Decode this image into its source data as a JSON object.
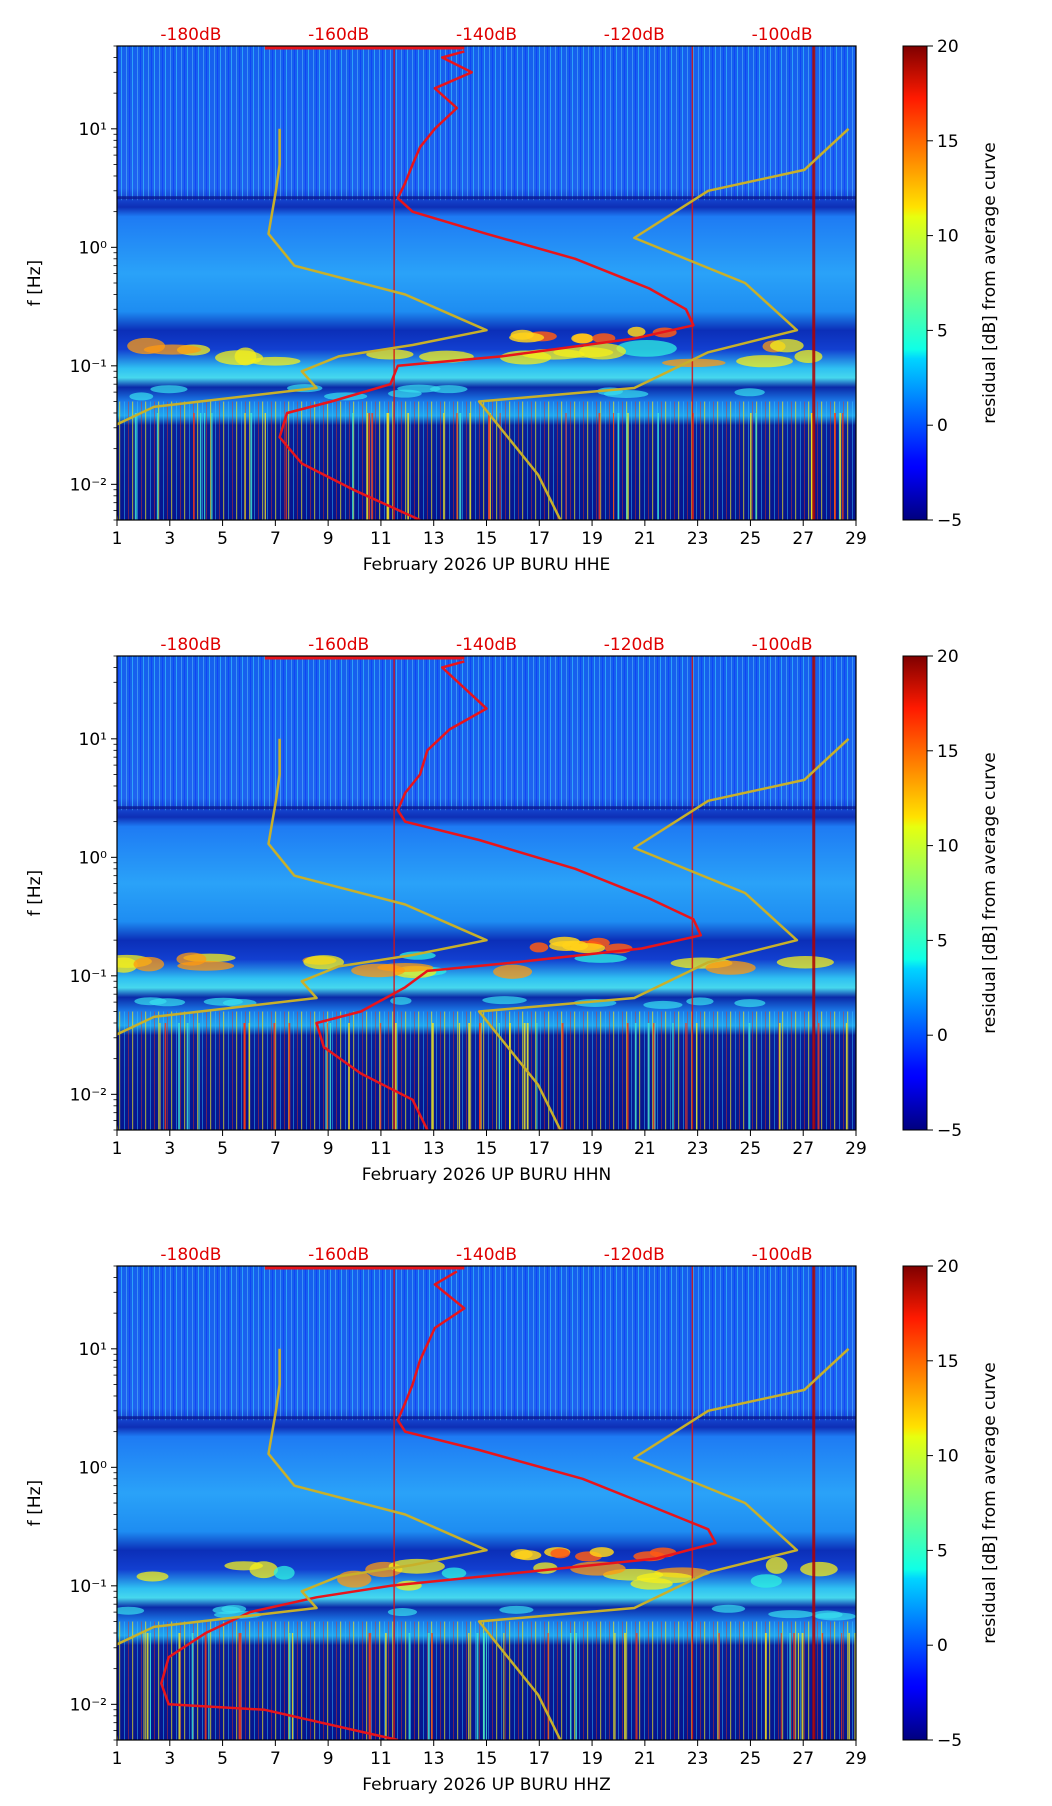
{
  "chart_data": [
    {
      "type": "heatmap",
      "title": "",
      "xlabel": "February 2026 UP BURU  HHE",
      "ylabel": "f [Hz]",
      "x_ticks": [
        "1",
        "3",
        "5",
        "7",
        "9",
        "11",
        "13",
        "15",
        "17",
        "19",
        "21",
        "23",
        "25",
        "27",
        "29"
      ],
      "x_range": [
        1,
        29
      ],
      "y_ticks": [
        "10⁻²",
        "10⁻¹",
        "10⁰",
        "10¹"
      ],
      "y_range_hz": [
        0.005,
        50
      ],
      "top_ticks": [
        "-180dB",
        "-160dB",
        "-140dB",
        "-120dB",
        "-100dB"
      ],
      "top_range_db": [
        -190,
        -90
      ],
      "colorbar": {
        "label": "residual [dB] from average curve",
        "ticks": [
          "20",
          "15",
          "10",
          "5",
          "0",
          "−5"
        ],
        "range": [
          -5,
          20
        ]
      },
      "series": [
        {
          "name": "median PSD (red)",
          "color": "#e8141b",
          "points": [
            [
              -143,
              45
            ],
            [
              -146,
              40
            ],
            [
              -142,
              30
            ],
            [
              -147,
              22
            ],
            [
              -144,
              15
            ],
            [
              -147,
              10
            ],
            [
              -149,
              7
            ],
            [
              -150,
              5
            ],
            [
              -151,
              3.5
            ],
            [
              -152,
              2.6
            ],
            [
              -150,
              2
            ],
            [
              -140,
              1.3
            ],
            [
              -128,
              0.8
            ],
            [
              -118,
              0.45
            ],
            [
              -113,
              0.3
            ],
            [
              -112,
              0.22
            ],
            [
              -120,
              0.17
            ],
            [
              -138,
              0.12
            ],
            [
              -152,
              0.1
            ],
            [
              -153,
              0.07
            ],
            [
              -161,
              0.05
            ],
            [
              -167,
              0.04
            ],
            [
              -168,
              0.025
            ],
            [
              -165,
              0.015
            ],
            [
              -158,
              0.009
            ],
            [
              -149,
              0.005
            ]
          ]
        },
        {
          "name": "Peterson NHNM (yellow)",
          "color": "#c8b02a",
          "points": [
            [
              -91,
              10
            ],
            [
              -97,
              4.5
            ],
            [
              -110,
              3
            ],
            [
              -120,
              1.2
            ],
            [
              -105,
              0.5
            ],
            [
              -98,
              0.2
            ],
            [
              -110,
              0.13
            ],
            [
              -120,
              0.065
            ],
            [
              -141,
              0.05
            ],
            [
              -133,
              0.012
            ],
            [
              -130,
              0.005
            ]
          ]
        },
        {
          "name": "Peterson NLNM (yellow)",
          "color": "#c8b02a",
          "points": [
            [
              -168,
              10
            ],
            [
              -168,
              5
            ],
            [
              -168.5,
              3
            ],
            [
              -169.5,
              1.3
            ],
            [
              -166,
              0.7
            ],
            [
              -151,
              0.4
            ],
            [
              -140,
              0.2
            ],
            [
              -150,
              0.15
            ],
            [
              -160,
              0.12
            ],
            [
              -165,
              0.09
            ],
            [
              -163,
              0.065
            ],
            [
              -185,
              0.045
            ],
            [
              -191,
              0.03
            ],
            [
              -192,
              0.02
            ],
            [
              -191,
              0.013
            ],
            [
              -190,
              0.005
            ]
          ]
        }
      ]
    },
    {
      "type": "heatmap",
      "title": "",
      "xlabel": "February 2026 UP BURU  HHN",
      "ylabel": "f [Hz]",
      "x_ticks": [
        "1",
        "3",
        "5",
        "7",
        "9",
        "11",
        "13",
        "15",
        "17",
        "19",
        "21",
        "23",
        "25",
        "27",
        "29"
      ],
      "x_range": [
        1,
        29
      ],
      "y_ticks": [
        "10⁻²",
        "10⁻¹",
        "10⁰",
        "10¹"
      ],
      "y_range_hz": [
        0.005,
        50
      ],
      "top_ticks": [
        "-180dB",
        "-160dB",
        "-140dB",
        "-120dB",
        "-100dB"
      ],
      "top_range_db": [
        -190,
        -90
      ],
      "colorbar": {
        "label": "residual [dB] from average curve",
        "ticks": [
          "20",
          "15",
          "10",
          "5",
          "0",
          "−5"
        ],
        "range": [
          -5,
          20
        ]
      },
      "series": [
        {
          "name": "median PSD (red)",
          "color": "#e8141b",
          "points": [
            [
              -143,
              45
            ],
            [
              -146,
              40
            ],
            [
              -140,
              18
            ],
            [
              -145,
              12
            ],
            [
              -148,
              8
            ],
            [
              -149,
              5
            ],
            [
              -151,
              3.5
            ],
            [
              -152,
              2.5
            ],
            [
              -151,
              2
            ],
            [
              -141,
              1.4
            ],
            [
              -128,
              0.8
            ],
            [
              -118,
              0.45
            ],
            [
              -112,
              0.3
            ],
            [
              -111,
              0.22
            ],
            [
              -119,
              0.17
            ],
            [
              -136,
              0.13
            ],
            [
              -148,
              0.11
            ],
            [
              -151,
              0.08
            ],
            [
              -157,
              0.05
            ],
            [
              -163,
              0.04
            ],
            [
              -162,
              0.025
            ],
            [
              -157,
              0.015
            ],
            [
              -150,
              0.009
            ],
            [
              -148,
              0.005
            ]
          ]
        },
        {
          "name": "Peterson NHNM (yellow)",
          "color": "#c8b02a",
          "points": [
            [
              -91,
              10
            ],
            [
              -97,
              4.5
            ],
            [
              -110,
              3
            ],
            [
              -120,
              1.2
            ],
            [
              -105,
              0.5
            ],
            [
              -98,
              0.2
            ],
            [
              -110,
              0.13
            ],
            [
              -120,
              0.065
            ],
            [
              -141,
              0.05
            ],
            [
              -133,
              0.012
            ],
            [
              -130,
              0.005
            ]
          ]
        },
        {
          "name": "Peterson NLNM (yellow)",
          "color": "#c8b02a",
          "points": [
            [
              -168,
              10
            ],
            [
              -168,
              5
            ],
            [
              -168.5,
              3
            ],
            [
              -169.5,
              1.3
            ],
            [
              -166,
              0.7
            ],
            [
              -151,
              0.4
            ],
            [
              -140,
              0.2
            ],
            [
              -150,
              0.15
            ],
            [
              -160,
              0.12
            ],
            [
              -165,
              0.09
            ],
            [
              -163,
              0.065
            ],
            [
              -185,
              0.045
            ],
            [
              -191,
              0.03
            ],
            [
              -192,
              0.02
            ],
            [
              -191,
              0.013
            ],
            [
              -190,
              0.005
            ]
          ]
        }
      ]
    },
    {
      "type": "heatmap",
      "title": "",
      "xlabel": "February 2026 UP BURU  HHZ",
      "ylabel": "f [Hz]",
      "x_ticks": [
        "1",
        "3",
        "5",
        "7",
        "9",
        "11",
        "13",
        "15",
        "17",
        "19",
        "21",
        "23",
        "25",
        "27",
        "29"
      ],
      "x_range": [
        1,
        29
      ],
      "y_ticks": [
        "10⁻²",
        "10⁻¹",
        "10⁰",
        "10¹"
      ],
      "y_range_hz": [
        0.005,
        50
      ],
      "top_ticks": [
        "-180dB",
        "-160dB",
        "-140dB",
        "-120dB",
        "-100dB"
      ],
      "top_range_db": [
        -190,
        -90
      ],
      "colorbar": {
        "label": "residual [dB] from average curve",
        "ticks": [
          "20",
          "15",
          "10",
          "5",
          "0",
          "−5"
        ],
        "range": [
          -5,
          20
        ]
      },
      "series": [
        {
          "name": "median PSD (red)",
          "color": "#e8141b",
          "points": [
            [
              -144,
              45
            ],
            [
              -147,
              35
            ],
            [
              -143,
              22
            ],
            [
              -147,
              15
            ],
            [
              -149,
              8
            ],
            [
              -150,
              5
            ],
            [
              -151,
              3.5
            ],
            [
              -152,
              2.5
            ],
            [
              -151,
              2
            ],
            [
              -141,
              1.4
            ],
            [
              -127,
              0.8
            ],
            [
              -117,
              0.45
            ],
            [
              -110,
              0.3
            ],
            [
              -109,
              0.23
            ],
            [
              -117,
              0.17
            ],
            [
              -135,
              0.13
            ],
            [
              -153,
              0.1
            ],
            [
              -163,
              0.08
            ],
            [
              -172,
              0.06
            ],
            [
              -178,
              0.04
            ],
            [
              -183,
              0.025
            ],
            [
              -184,
              0.015
            ],
            [
              -183,
              0.01
            ],
            [
              -170,
              0.009
            ],
            [
              -152,
              0.005
            ]
          ]
        },
        {
          "name": "Peterson NHNM (yellow)",
          "color": "#c8b02a",
          "points": [
            [
              -91,
              10
            ],
            [
              -97,
              4.5
            ],
            [
              -110,
              3
            ],
            [
              -120,
              1.2
            ],
            [
              -105,
              0.5
            ],
            [
              -98,
              0.2
            ],
            [
              -110,
              0.13
            ],
            [
              -120,
              0.065
            ],
            [
              -141,
              0.05
            ],
            [
              -133,
              0.012
            ],
            [
              -130,
              0.005
            ]
          ]
        },
        {
          "name": "Peterson NLNM (yellow)",
          "color": "#c8b02a",
          "points": [
            [
              -168,
              10
            ],
            [
              -168,
              5
            ],
            [
              -168.5,
              3
            ],
            [
              -169.5,
              1.3
            ],
            [
              -166,
              0.7
            ],
            [
              -151,
              0.4
            ],
            [
              -140,
              0.2
            ],
            [
              -150,
              0.15
            ],
            [
              -160,
              0.12
            ],
            [
              -165,
              0.09
            ],
            [
              -163,
              0.065
            ],
            [
              -185,
              0.045
            ],
            [
              -191,
              0.03
            ],
            [
              -192,
              0.02
            ],
            [
              -191,
              0.013
            ],
            [
              -190,
              0.005
            ]
          ]
        }
      ]
    }
  ]
}
